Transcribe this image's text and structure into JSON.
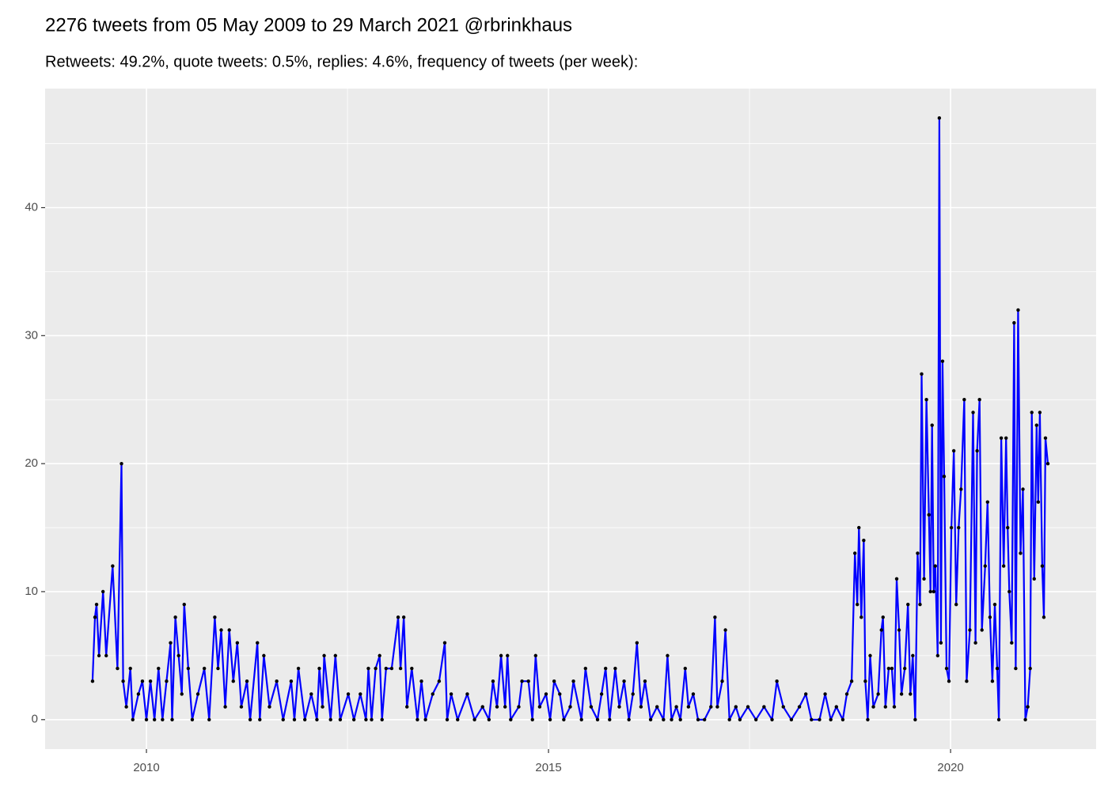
{
  "chart_data": {
    "type": "line",
    "title": "2276 tweets from 05 May 2009 to 29 March 2021 @rbrinkhaus",
    "subtitle": "Retweets: 49.2%, quote tweets: 0.5%, replies: 4.6%, frequency of tweets (per week):",
    "x": [
      2009.33,
      2009.36,
      2009.38,
      2009.41,
      2009.46,
      2009.5,
      2009.58,
      2009.64,
      2009.69,
      2009.71,
      2009.75,
      2009.8,
      2009.83,
      2009.9,
      2009.95,
      2010.0,
      2010.05,
      2010.1,
      2010.15,
      2010.2,
      2010.25,
      2010.3,
      2010.32,
      2010.36,
      2010.4,
      2010.44,
      2010.47,
      2010.52,
      2010.57,
      2010.64,
      2010.72,
      2010.78,
      2010.85,
      2010.89,
      2010.93,
      2010.98,
      2011.03,
      2011.08,
      2011.13,
      2011.18,
      2011.25,
      2011.29,
      2011.38,
      2011.41,
      2011.46,
      2011.53,
      2011.62,
      2011.7,
      2011.8,
      2011.84,
      2011.89,
      2011.97,
      2012.05,
      2012.12,
      2012.15,
      2012.19,
      2012.21,
      2012.29,
      2012.35,
      2012.41,
      2012.51,
      2012.58,
      2012.66,
      2012.73,
      2012.76,
      2012.8,
      2012.85,
      2012.9,
      2012.93,
      2012.98,
      2013.05,
      2013.13,
      2013.16,
      2013.2,
      2013.24,
      2013.3,
      2013.37,
      2013.42,
      2013.47,
      2013.56,
      2013.64,
      2013.71,
      2013.74,
      2013.79,
      2013.87,
      2013.99,
      2014.08,
      2014.18,
      2014.26,
      2014.31,
      2014.36,
      2014.41,
      2014.46,
      2014.49,
      2014.53,
      2014.63,
      2014.67,
      2014.75,
      2014.8,
      2014.84,
      2014.89,
      2014.97,
      2015.02,
      2015.07,
      2015.14,
      2015.19,
      2015.27,
      2015.31,
      2015.41,
      2015.46,
      2015.53,
      2015.61,
      2015.66,
      2015.71,
      2015.76,
      2015.83,
      2015.88,
      2015.94,
      2016.0,
      2016.05,
      2016.1,
      2016.15,
      2016.2,
      2016.27,
      2016.35,
      2016.43,
      2016.48,
      2016.53,
      2016.59,
      2016.64,
      2016.7,
      2016.74,
      2016.8,
      2016.86,
      2016.94,
      2017.02,
      2017.07,
      2017.1,
      2017.16,
      2017.2,
      2017.25,
      2017.33,
      2017.38,
      2017.48,
      2017.58,
      2017.68,
      2017.78,
      2017.84,
      2017.92,
      2018.02,
      2018.12,
      2018.2,
      2018.27,
      2018.37,
      2018.44,
      2018.51,
      2018.58,
      2018.66,
      2018.71,
      2018.77,
      2018.81,
      2018.84,
      2018.86,
      2018.89,
      2018.92,
      2018.94,
      2018.97,
      2019.0,
      2019.04,
      2019.1,
      2019.14,
      2019.16,
      2019.19,
      2019.23,
      2019.27,
      2019.3,
      2019.33,
      2019.36,
      2019.39,
      2019.43,
      2019.47,
      2019.5,
      2019.53,
      2019.56,
      2019.59,
      2019.62,
      2019.64,
      2019.67,
      2019.7,
      2019.73,
      2019.75,
      2019.77,
      2019.79,
      2019.81,
      2019.84,
      2019.86,
      2019.88,
      2019.9,
      2019.92,
      2019.95,
      2019.98,
      2020.01,
      2020.04,
      2020.07,
      2020.1,
      2020.13,
      2020.17,
      2020.2,
      2020.24,
      2020.28,
      2020.31,
      2020.33,
      2020.36,
      2020.39,
      2020.43,
      2020.46,
      2020.49,
      2020.52,
      2020.55,
      2020.58,
      2020.6,
      2020.63,
      2020.66,
      2020.69,
      2020.71,
      2020.73,
      2020.76,
      2020.79,
      2020.81,
      2020.84,
      2020.87,
      2020.9,
      2020.93,
      2020.96,
      2020.99,
      2021.01,
      2021.04,
      2021.07,
      2021.09,
      2021.11,
      2021.14,
      2021.16,
      2021.18,
      2021.21
    ],
    "series": [
      {
        "color": "#0000ff",
        "point_color": "#000000",
        "values": [
          3,
          8,
          9,
          5,
          10,
          5,
          12,
          4,
          20,
          3,
          1,
          4,
          0,
          2,
          3,
          0,
          3,
          0,
          4,
          0,
          3,
          6,
          0,
          8,
          5,
          2,
          9,
          4,
          0,
          2,
          4,
          0,
          8,
          4,
          7,
          1,
          7,
          3,
          6,
          1,
          3,
          0,
          6,
          0,
          5,
          1,
          3,
          0,
          3,
          0,
          4,
          0,
          2,
          0,
          4,
          1,
          5,
          0,
          5,
          0,
          2,
          0,
          2,
          0,
          4,
          0,
          4,
          5,
          0,
          4,
          4,
          8,
          4,
          8,
          1,
          4,
          0,
          3,
          0,
          2,
          3,
          6,
          0,
          2,
          0,
          2,
          0,
          1,
          0,
          3,
          1,
          5,
          1,
          5,
          0,
          1,
          3,
          3,
          0,
          5,
          1,
          2,
          0,
          3,
          2,
          0,
          1,
          3,
          0,
          4,
          1,
          0,
          2,
          4,
          0,
          4,
          1,
          3,
          0,
          2,
          6,
          1,
          3,
          0,
          1,
          0,
          5,
          0,
          1,
          0,
          4,
          1,
          2,
          0,
          0,
          1,
          8,
          1,
          3,
          7,
          0,
          1,
          0,
          1,
          0,
          1,
          0,
          3,
          1,
          0,
          1,
          2,
          0,
          0,
          2,
          0,
          1,
          0,
          2,
          3,
          13,
          9,
          15,
          8,
          14,
          3,
          0,
          5,
          1,
          2,
          7,
          8,
          1,
          4,
          4,
          1,
          11,
          7,
          2,
          4,
          9,
          2,
          5,
          0,
          13,
          9,
          27,
          11,
          25,
          16,
          10,
          23,
          10,
          12,
          5,
          47,
          6,
          28,
          19,
          4,
          3,
          15,
          21,
          9,
          15,
          18,
          25,
          3,
          7,
          24,
          6,
          21,
          25,
          7,
          12,
          17,
          8,
          3,
          9,
          4,
          0,
          22,
          12,
          22,
          15,
          10,
          6,
          31,
          4,
          32,
          13,
          18,
          0,
          1,
          4,
          24,
          11,
          23,
          17,
          24,
          12,
          8,
          22,
          20
        ]
      }
    ],
    "xlim": [
      2008.74,
      2021.81
    ],
    "ylim": [
      -2.3,
      49.3
    ],
    "xticks": [
      2010,
      2015,
      2020
    ],
    "yticks": [
      0,
      10,
      20,
      30,
      40
    ],
    "grid": true
  }
}
